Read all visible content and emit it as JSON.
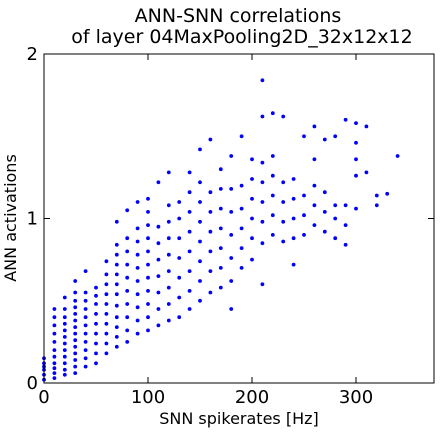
{
  "chart_data": {
    "type": "scatter",
    "title_line1": "ANN-SNN correlations",
    "title_line2": "of layer 04MaxPooling2D_32x12x12",
    "xlabel": "SNN spikerates [Hz]",
    "ylabel": "ANN activations",
    "xlim": [
      0,
      375
    ],
    "ylim": [
      0,
      2
    ],
    "xticks": [
      0,
      100,
      200,
      300
    ],
    "yticks": [
      0,
      1,
      2
    ],
    "marker_color": "#0000ff",
    "grid": false,
    "series": [
      {
        "points": [
          [
            0,
            0.02
          ],
          [
            0,
            0.05
          ],
          [
            0,
            0.08
          ],
          [
            0,
            0.1
          ],
          [
            0,
            0.12
          ],
          [
            0,
            0.15
          ],
          [
            10,
            0.03
          ],
          [
            10,
            0.06
          ],
          [
            10,
            0.09
          ],
          [
            10,
            0.12
          ],
          [
            10,
            0.16
          ],
          [
            10,
            0.2
          ],
          [
            10,
            0.25
          ],
          [
            10,
            0.3
          ],
          [
            10,
            0.35
          ],
          [
            10,
            0.4
          ],
          [
            10,
            0.45
          ],
          [
            20,
            0.05
          ],
          [
            20,
            0.08
          ],
          [
            20,
            0.12
          ],
          [
            20,
            0.16
          ],
          [
            20,
            0.2
          ],
          [
            20,
            0.24
          ],
          [
            20,
            0.28
          ],
          [
            20,
            0.32
          ],
          [
            20,
            0.36
          ],
          [
            20,
            0.4
          ],
          [
            20,
            0.45
          ],
          [
            20,
            0.52
          ],
          [
            30,
            0.06
          ],
          [
            30,
            0.1
          ],
          [
            30,
            0.14
          ],
          [
            30,
            0.18
          ],
          [
            30,
            0.22
          ],
          [
            30,
            0.26
          ],
          [
            30,
            0.3
          ],
          [
            30,
            0.34
          ],
          [
            30,
            0.38
          ],
          [
            30,
            0.42
          ],
          [
            30,
            0.46
          ],
          [
            30,
            0.5
          ],
          [
            30,
            0.55
          ],
          [
            30,
            0.62
          ],
          [
            40,
            0.1
          ],
          [
            40,
            0.15
          ],
          [
            40,
            0.2
          ],
          [
            40,
            0.25
          ],
          [
            40,
            0.3
          ],
          [
            40,
            0.35
          ],
          [
            40,
            0.4
          ],
          [
            40,
            0.45
          ],
          [
            40,
            0.5
          ],
          [
            40,
            0.55
          ],
          [
            40,
            0.68
          ],
          [
            50,
            0.12
          ],
          [
            50,
            0.18
          ],
          [
            50,
            0.24
          ],
          [
            50,
            0.3
          ],
          [
            50,
            0.36
          ],
          [
            50,
            0.42
          ],
          [
            50,
            0.48
          ],
          [
            50,
            0.53
          ],
          [
            50,
            0.58
          ],
          [
            60,
            0.18
          ],
          [
            60,
            0.24
          ],
          [
            60,
            0.3
          ],
          [
            60,
            0.36
          ],
          [
            60,
            0.42
          ],
          [
            60,
            0.48
          ],
          [
            60,
            0.54
          ],
          [
            60,
            0.6
          ],
          [
            60,
            0.66
          ],
          [
            60,
            0.74
          ],
          [
            70,
            0.22
          ],
          [
            70,
            0.28
          ],
          [
            70,
            0.34
          ],
          [
            70,
            0.4
          ],
          [
            70,
            0.47
          ],
          [
            70,
            0.54
          ],
          [
            70,
            0.6
          ],
          [
            70,
            0.66
          ],
          [
            70,
            0.72
          ],
          [
            70,
            0.78
          ],
          [
            70,
            0.84
          ],
          [
            70,
            0.98
          ],
          [
            80,
            0.25
          ],
          [
            80,
            0.32
          ],
          [
            80,
            0.4
          ],
          [
            80,
            0.48
          ],
          [
            80,
            0.56
          ],
          [
            80,
            0.64
          ],
          [
            80,
            0.72
          ],
          [
            80,
            0.8
          ],
          [
            80,
            0.88
          ],
          [
            80,
            1.05
          ],
          [
            90,
            0.3
          ],
          [
            90,
            0.38
          ],
          [
            90,
            0.46
          ],
          [
            90,
            0.54
          ],
          [
            90,
            0.62
          ],
          [
            90,
            0.7
          ],
          [
            90,
            0.78
          ],
          [
            90,
            0.86
          ],
          [
            90,
            0.94
          ],
          [
            90,
            1.1
          ],
          [
            100,
            0.32
          ],
          [
            100,
            0.4
          ],
          [
            100,
            0.48
          ],
          [
            100,
            0.56
          ],
          [
            100,
            0.64
          ],
          [
            100,
            0.72
          ],
          [
            100,
            0.8
          ],
          [
            100,
            0.88
          ],
          [
            100,
            0.96
          ],
          [
            100,
            1.04
          ],
          [
            100,
            1.12
          ],
          [
            110,
            0.35
          ],
          [
            110,
            0.45
          ],
          [
            110,
            0.55
          ],
          [
            110,
            0.65
          ],
          [
            110,
            0.75
          ],
          [
            110,
            0.85
          ],
          [
            110,
            0.95
          ],
          [
            110,
            1.22
          ],
          [
            120,
            0.38
          ],
          [
            120,
            0.48
          ],
          [
            120,
            0.58
          ],
          [
            120,
            0.68
          ],
          [
            120,
            0.78
          ],
          [
            120,
            0.88
          ],
          [
            120,
            0.98
          ],
          [
            120,
            1.08
          ],
          [
            120,
            1.28
          ],
          [
            130,
            0.4
          ],
          [
            130,
            0.52
          ],
          [
            130,
            0.64
          ],
          [
            130,
            0.76
          ],
          [
            130,
            0.88
          ],
          [
            130,
            1.0
          ],
          [
            130,
            1.1
          ],
          [
            140,
            0.45
          ],
          [
            140,
            0.56
          ],
          [
            140,
            0.68
          ],
          [
            140,
            0.8
          ],
          [
            140,
            0.92
          ],
          [
            140,
            1.04
          ],
          [
            140,
            1.16
          ],
          [
            140,
            1.28
          ],
          [
            150,
            0.5
          ],
          [
            150,
            0.62
          ],
          [
            150,
            0.74
          ],
          [
            150,
            0.86
          ],
          [
            150,
            0.98
          ],
          [
            150,
            1.1
          ],
          [
            150,
            1.22
          ],
          [
            150,
            1.42
          ],
          [
            160,
            0.55
          ],
          [
            160,
            0.68
          ],
          [
            160,
            0.8
          ],
          [
            160,
            0.92
          ],
          [
            160,
            1.04
          ],
          [
            160,
            1.16
          ],
          [
            160,
            1.48
          ],
          [
            170,
            0.58
          ],
          [
            170,
            0.7
          ],
          [
            170,
            0.82
          ],
          [
            170,
            0.94
          ],
          [
            170,
            1.06
          ],
          [
            170,
            1.18
          ],
          [
            170,
            1.3
          ],
          [
            180,
            0.45
          ],
          [
            180,
            0.62
          ],
          [
            180,
            0.76
          ],
          [
            180,
            0.9
          ],
          [
            180,
            1.04
          ],
          [
            180,
            1.18
          ],
          [
            180,
            1.38
          ],
          [
            190,
            0.7
          ],
          [
            190,
            0.82
          ],
          [
            190,
            0.94
          ],
          [
            190,
            1.06
          ],
          [
            190,
            1.2
          ],
          [
            190,
            1.5
          ],
          [
            200,
            0.75
          ],
          [
            200,
            0.88
          ],
          [
            200,
            1.0
          ],
          [
            200,
            1.12
          ],
          [
            200,
            1.24
          ],
          [
            200,
            1.36
          ],
          [
            210,
            0.6
          ],
          [
            210,
            0.85
          ],
          [
            210,
            0.98
          ],
          [
            210,
            1.1
          ],
          [
            210,
            1.22
          ],
          [
            210,
            1.34
          ],
          [
            210,
            1.62
          ],
          [
            210,
            1.84
          ],
          [
            220,
            0.9
          ],
          [
            220,
            1.02
          ],
          [
            220,
            1.14
          ],
          [
            220,
            1.26
          ],
          [
            220,
            1.38
          ],
          [
            220,
            1.64
          ],
          [
            230,
            0.86
          ],
          [
            230,
            0.98
          ],
          [
            230,
            1.1
          ],
          [
            230,
            1.22
          ],
          [
            230,
            1.62
          ],
          [
            240,
            0.72
          ],
          [
            240,
            0.88
          ],
          [
            240,
            1.0
          ],
          [
            240,
            1.12
          ],
          [
            240,
            1.24
          ],
          [
            250,
            0.9
          ],
          [
            250,
            1.02
          ],
          [
            250,
            1.14
          ],
          [
            250,
            1.5
          ],
          [
            260,
            0.96
          ],
          [
            260,
            1.08
          ],
          [
            260,
            1.2
          ],
          [
            260,
            1.36
          ],
          [
            260,
            1.56
          ],
          [
            270,
            0.92
          ],
          [
            270,
            1.04
          ],
          [
            270,
            1.16
          ],
          [
            270,
            1.48
          ],
          [
            280,
            0.88
          ],
          [
            280,
            1.0
          ],
          [
            280,
            1.08
          ],
          [
            280,
            1.5
          ],
          [
            290,
            0.84
          ],
          [
            290,
            0.96
          ],
          [
            290,
            1.08
          ],
          [
            290,
            1.6
          ],
          [
            300,
            1.06
          ],
          [
            300,
            1.26
          ],
          [
            300,
            1.36
          ],
          [
            300,
            1.46
          ],
          [
            300,
            1.58
          ],
          [
            310,
            1.28
          ],
          [
            310,
            1.56
          ],
          [
            320,
            1.08
          ],
          [
            320,
            1.14
          ],
          [
            330,
            1.15
          ],
          [
            340,
            1.38
          ]
        ]
      }
    ]
  }
}
